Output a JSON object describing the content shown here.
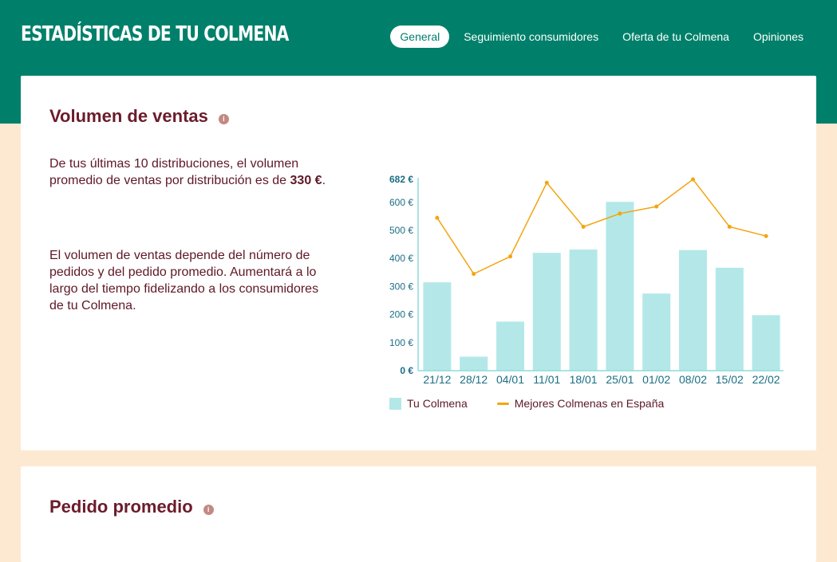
{
  "header": {
    "title": "ESTADÍSTICAS DE TU COLMENA",
    "nav": [
      {
        "label": "General",
        "active": true
      },
      {
        "label": "Seguimiento consumidores"
      },
      {
        "label": "Oferta de tu Colmena"
      },
      {
        "label": "Opiniones"
      }
    ]
  },
  "volumen": {
    "title": "Volumen de ventas",
    "info_icon": "info-icon",
    "para1_prefix": "De tus últimas 10 distribuciones, el volumen promedio de ventas por distribución es de ",
    "para1_value": "330 €",
    "para1_suffix": ".",
    "para2": "El volumen de ventas depende del número de pedidos y del pedido promedio. Aumentará a lo largo del tiempo fidelizando a los consumidores de tu Colmena.",
    "legend": {
      "bars": "Tu Colmena",
      "line": "Mejores Colmenas en España"
    }
  },
  "pedido": {
    "title": "Pedido promedio"
  },
  "colors": {
    "header": "#00806a",
    "title": "#6b1c2b",
    "bar": "#b4e8e8",
    "line": "#f4a40f",
    "axis": "#1a6e85"
  },
  "chart_data": {
    "type": "bar",
    "categories": [
      "21/12",
      "28/12",
      "04/01",
      "11/01",
      "18/01",
      "25/01",
      "01/02",
      "08/02",
      "15/02",
      "22/02"
    ],
    "series": [
      {
        "name": "Tu Colmena",
        "type": "bar",
        "values": [
          315,
          50,
          175,
          420,
          432,
          602,
          275,
          430,
          367,
          198
        ]
      },
      {
        "name": "Mejores Colmenas en España",
        "type": "line",
        "values": [
          545,
          345,
          407,
          670,
          513,
          560,
          585,
          682,
          513,
          480
        ]
      }
    ],
    "y_ticks": [
      "0 €",
      "100 €",
      "200 €",
      "300 €",
      "400 €",
      "500 €",
      "600 €",
      "682 €"
    ],
    "y_tick_values": [
      0,
      100,
      200,
      300,
      400,
      500,
      600,
      682
    ],
    "ylim": [
      0,
      682
    ],
    "legend_position": "bottom"
  }
}
